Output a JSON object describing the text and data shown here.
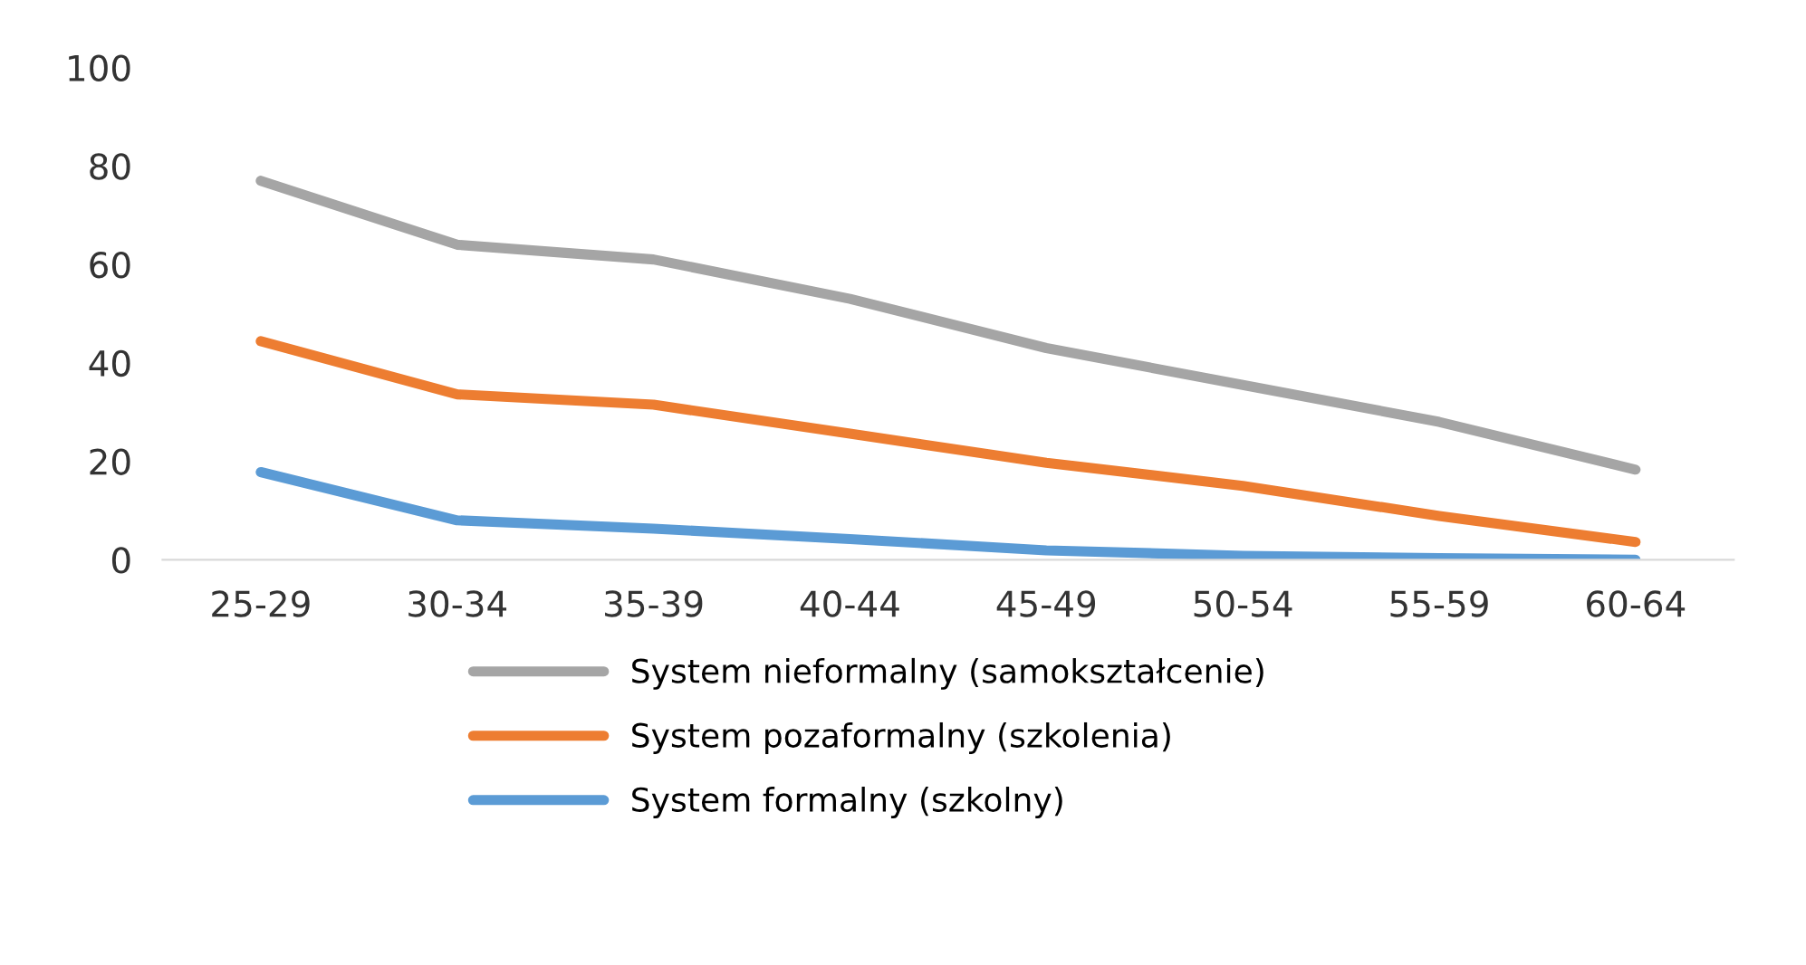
{
  "chart_data": {
    "type": "line",
    "categories": [
      "25-29",
      "30-34",
      "35-39",
      "40-44",
      "45-49",
      "50-54",
      "55-59",
      "60-64"
    ],
    "series": [
      {
        "name": "System nieformalny (samokształcenie)",
        "color": "#a5a5a5",
        "values": [
          77,
          64,
          61,
          53,
          43,
          35.5,
          28,
          18.3
        ]
      },
      {
        "name": "System pozaformalny (szkolenia)",
        "color": "#ed7d31",
        "values": [
          44.4,
          33.6,
          31.5,
          25.6,
          19.7,
          15,
          8.9,
          3.6
        ]
      },
      {
        "name": "System formalny (szkolny)",
        "color": "#5b9bd5",
        "values": [
          17.8,
          8,
          6.3,
          4.2,
          1.9,
          0.8,
          0.3,
          0
        ]
      }
    ],
    "ylim": [
      0,
      100
    ],
    "yticks": [
      0,
      20,
      40,
      60,
      80,
      100
    ],
    "grid": false,
    "legend": "bottom",
    "marker": "none",
    "line_style": "solid"
  }
}
